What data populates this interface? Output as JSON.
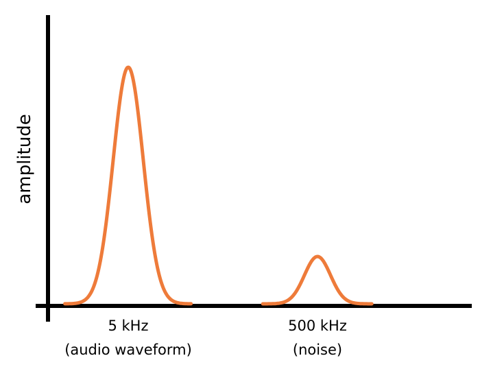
{
  "chart_data": {
    "type": "line",
    "ylabel": "amplitude",
    "xlabel": "",
    "peaks": [
      {
        "label_line1": "5 kHz",
        "label_line2": "(audio waveform)",
        "amplitude": 1.0
      },
      {
        "label_line1": "500 kHz",
        "label_line2": "(noise)",
        "amplitude": 0.2
      }
    ],
    "ylim": [
      0,
      1.1
    ],
    "grid": false,
    "line_color": "#EE7B3A"
  }
}
